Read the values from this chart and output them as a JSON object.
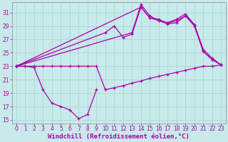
{
  "background_color": "#c8eaea",
  "grid_color": "#b0d8d8",
  "line_color": "#aa00aa",
  "xlabel": "Windchill (Refroidissement éolien,°C)",
  "xlabel_fontsize": 6.5,
  "tick_fontsize": 5.5,
  "xlim": [
    -0.5,
    23.5
  ],
  "ylim": [
    14.5,
    32.5
  ],
  "yticks": [
    15,
    17,
    19,
    21,
    23,
    25,
    27,
    29,
    31
  ],
  "xticks": [
    0,
    1,
    2,
    3,
    4,
    5,
    6,
    7,
    8,
    9,
    10,
    11,
    12,
    13,
    14,
    15,
    16,
    17,
    18,
    19,
    20,
    21,
    22,
    23
  ],
  "line_low_x": [
    0,
    1,
    2,
    3,
    4,
    5,
    6,
    7,
    8,
    9
  ],
  "line_low_y": [
    23,
    23,
    22.8,
    19.5,
    17.5,
    17.0,
    16.5,
    15.2,
    15.8,
    19.5
  ],
  "line_bottom_x": [
    0,
    1,
    2,
    3,
    4,
    5,
    6,
    7,
    8,
    9,
    10,
    11,
    12,
    13,
    14,
    15,
    16,
    17,
    18,
    19,
    20,
    21,
    22,
    23
  ],
  "line_bottom_y": [
    23,
    23,
    23,
    23,
    23,
    23,
    23,
    23,
    23,
    23,
    19.5,
    19.8,
    20.1,
    20.5,
    20.8,
    21.2,
    21.5,
    21.8,
    22.1,
    22.4,
    22.7,
    23.0,
    23.0,
    23.2
  ],
  "line_upper1_x": [
    0,
    14,
    15,
    16,
    17,
    18,
    19,
    20,
    21,
    22,
    23
  ],
  "line_upper1_y": [
    23,
    31.8,
    30.2,
    30.0,
    29.4,
    29.8,
    30.5,
    29.2,
    25.2,
    24.0,
    23.2
  ],
  "line_upper2_x": [
    0,
    13,
    14,
    15,
    16,
    17,
    18,
    19,
    20,
    21,
    22,
    23
  ],
  "line_upper2_y": [
    23,
    28.0,
    32.2,
    30.5,
    29.8,
    29.5,
    30.0,
    30.8,
    29.2,
    25.5,
    24.2,
    23.2
  ],
  "line_mid_x": [
    0,
    10,
    11,
    12,
    13,
    14,
    15,
    16,
    17,
    18,
    19,
    20,
    21,
    22,
    23
  ],
  "line_mid_y": [
    23,
    28.0,
    29.0,
    27.3,
    27.8,
    31.8,
    30.2,
    29.8,
    29.3,
    29.5,
    30.5,
    29.0,
    25.2,
    24.0,
    23.2
  ]
}
